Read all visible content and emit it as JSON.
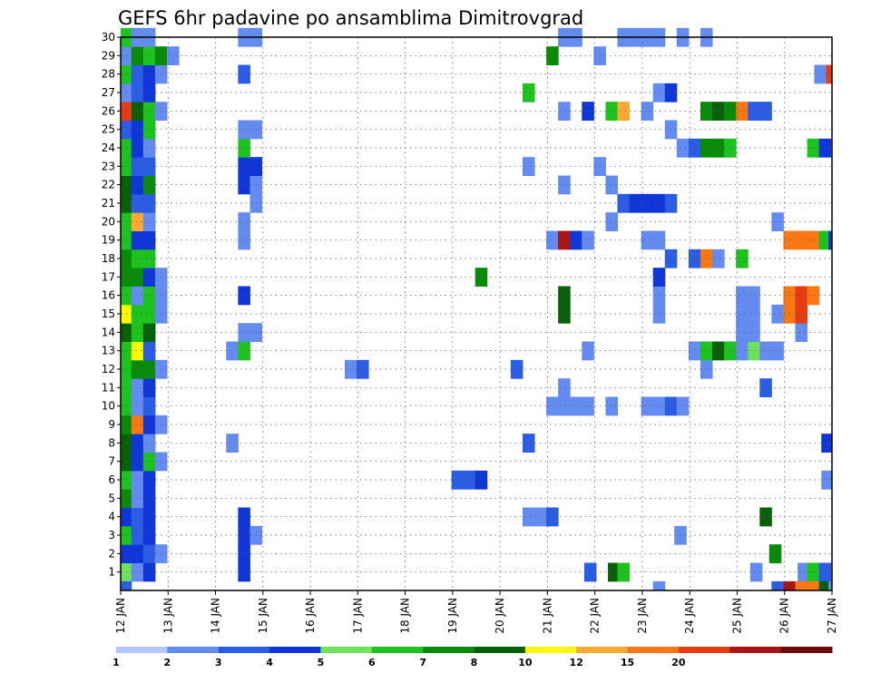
{
  "chart_data": {
    "type": "heatmap",
    "title": "GEFS 6hr padavine po ansamblima Dimitrovgrad",
    "xlabel": "",
    "ylabel": "",
    "x_ticks": [
      "12 JAN",
      "13 JAN",
      "14 JAN",
      "15 JAN",
      "16 JAN",
      "17 JAN",
      "18 JAN",
      "19 JAN",
      "20 JAN",
      "21 JAN",
      "22 JAN",
      "23 JAN",
      "24 JAN",
      "25 JAN",
      "26 JAN",
      "27 JAN"
    ],
    "y_ticks": [
      "1",
      "2",
      "3",
      "4",
      "5",
      "6",
      "7",
      "8",
      "9",
      "10",
      "11",
      "12",
      "13",
      "14",
      "15",
      "16",
      "17",
      "18",
      "19",
      "20",
      "21",
      "22",
      "23",
      "24",
      "25",
      "26",
      "27",
      "28",
      "29",
      "30"
    ],
    "xlim": [
      0,
      15
    ],
    "ylim": [
      0,
      30
    ],
    "grid": true,
    "legend": "bottom colorbar",
    "colorbar": {
      "labels": [
        "1",
        "2",
        "3",
        "4",
        "5",
        "6",
        "7",
        "8",
        "10",
        "12",
        "15",
        "20"
      ],
      "colors": [
        "#b4c6fa",
        "#648cf0",
        "#2a5ce4",
        "#1036d8",
        "#6ee25a",
        "#1ec21e",
        "#0a8a0a",
        "#086008",
        "#fafa00",
        "#faaa32",
        "#fa7814",
        "#e63c14",
        "#aa1414",
        "#6e0a0a"
      ]
    },
    "cells": [
      [
        0.1,
        1,
        4
      ],
      [
        0.35,
        1,
        1
      ],
      [
        0.6,
        1,
        3
      ],
      [
        2.6,
        1,
        3
      ],
      [
        9.9,
        1,
        2
      ],
      [
        10.4,
        1,
        7
      ],
      [
        10.6,
        1,
        5
      ],
      [
        13.4,
        1,
        1
      ],
      [
        14.4,
        1,
        1
      ],
      [
        14.6,
        1,
        5
      ],
      [
        14.85,
        1,
        2
      ],
      [
        0.1,
        2,
        3
      ],
      [
        0.35,
        2,
        3
      ],
      [
        0.6,
        2,
        2
      ],
      [
        0.85,
        2,
        1
      ],
      [
        2.6,
        2,
        3
      ],
      [
        13.8,
        2,
        6
      ],
      [
        0.1,
        3,
        5
      ],
      [
        0.35,
        3,
        2
      ],
      [
        0.6,
        3,
        3
      ],
      [
        2.6,
        3,
        3
      ],
      [
        2.85,
        3,
        1
      ],
      [
        11.8,
        3,
        1
      ],
      [
        0.1,
        4,
        3
      ],
      [
        0.35,
        4,
        2
      ],
      [
        0.6,
        4,
        3
      ],
      [
        2.6,
        4,
        3
      ],
      [
        8.6,
        4,
        1
      ],
      [
        8.85,
        4,
        1
      ],
      [
        9.1,
        4,
        2
      ],
      [
        13.6,
        4,
        7
      ],
      [
        0.1,
        5,
        6
      ],
      [
        0.35,
        5,
        1
      ],
      [
        0.6,
        5,
        3
      ],
      [
        0.1,
        6,
        5
      ],
      [
        0.35,
        6,
        1
      ],
      [
        0.6,
        6,
        3
      ],
      [
        7.1,
        6,
        2
      ],
      [
        7.35,
        6,
        2
      ],
      [
        7.6,
        6,
        3
      ],
      [
        14.9,
        6,
        1
      ],
      [
        0.1,
        7,
        7
      ],
      [
        0.35,
        7,
        3
      ],
      [
        0.6,
        7,
        5
      ],
      [
        0.85,
        7,
        1
      ],
      [
        0.1,
        8,
        7
      ],
      [
        0.35,
        8,
        3
      ],
      [
        0.6,
        8,
        1
      ],
      [
        2.35,
        8,
        1
      ],
      [
        8.6,
        8,
        2
      ],
      [
        14.9,
        8,
        3
      ],
      [
        0.1,
        9,
        6
      ],
      [
        0.35,
        9,
        10
      ],
      [
        0.6,
        9,
        3
      ],
      [
        0.85,
        9,
        1
      ],
      [
        0.1,
        10,
        5
      ],
      [
        0.35,
        10,
        1
      ],
      [
        0.6,
        10,
        2
      ],
      [
        9.1,
        10,
        1
      ],
      [
        9.35,
        10,
        1
      ],
      [
        9.6,
        10,
        1
      ],
      [
        9.85,
        10,
        1
      ],
      [
        10.35,
        10,
        1
      ],
      [
        11.1,
        10,
        1
      ],
      [
        11.35,
        10,
        1
      ],
      [
        11.6,
        10,
        2
      ],
      [
        11.85,
        10,
        1
      ],
      [
        0.1,
        11,
        5
      ],
      [
        0.35,
        11,
        1
      ],
      [
        0.6,
        11,
        3
      ],
      [
        9.35,
        11,
        1
      ],
      [
        13.6,
        11,
        2
      ],
      [
        0.1,
        12,
        5
      ],
      [
        0.35,
        12,
        6
      ],
      [
        0.6,
        12,
        6
      ],
      [
        0.85,
        12,
        1
      ],
      [
        4.85,
        12,
        1
      ],
      [
        5.1,
        12,
        2
      ],
      [
        8.35,
        12,
        2
      ],
      [
        12.35,
        12,
        1
      ],
      [
        0.1,
        13,
        5
      ],
      [
        0.35,
        13,
        8
      ],
      [
        0.6,
        13,
        2
      ],
      [
        2.35,
        13,
        1
      ],
      [
        2.6,
        13,
        5
      ],
      [
        9.85,
        13,
        1
      ],
      [
        12.1,
        13,
        1
      ],
      [
        12.35,
        13,
        5
      ],
      [
        12.6,
        13,
        7
      ],
      [
        12.85,
        13,
        5
      ],
      [
        13.1,
        13,
        1
      ],
      [
        13.35,
        13,
        4
      ],
      [
        13.6,
        13,
        1
      ],
      [
        13.85,
        13,
        1
      ],
      [
        0.1,
        14,
        7
      ],
      [
        0.35,
        14,
        5
      ],
      [
        0.6,
        14,
        7
      ],
      [
        2.6,
        14,
        1
      ],
      [
        2.85,
        14,
        1
      ],
      [
        13.1,
        14,
        1
      ],
      [
        13.35,
        14,
        1
      ],
      [
        14.35,
        14,
        1
      ],
      [
        0.1,
        15,
        8
      ],
      [
        0.35,
        15,
        5
      ],
      [
        0.6,
        15,
        5
      ],
      [
        0.85,
        15,
        1
      ],
      [
        9.35,
        15,
        7
      ],
      [
        11.35,
        15,
        1
      ],
      [
        13.1,
        15,
        1
      ],
      [
        13.35,
        15,
        1
      ],
      [
        13.85,
        15,
        1
      ],
      [
        14.1,
        15,
        10
      ],
      [
        14.35,
        15,
        11
      ],
      [
        0.1,
        16,
        5
      ],
      [
        0.35,
        16,
        1
      ],
      [
        0.6,
        16,
        5
      ],
      [
        0.85,
        16,
        1
      ],
      [
        2.6,
        16,
        3
      ],
      [
        9.35,
        16,
        7
      ],
      [
        11.35,
        16,
        1
      ],
      [
        13.1,
        16,
        1
      ],
      [
        13.35,
        16,
        1
      ],
      [
        14.1,
        16,
        10
      ],
      [
        14.35,
        16,
        11
      ],
      [
        14.6,
        16,
        10
      ],
      [
        0.1,
        17,
        6
      ],
      [
        0.35,
        17,
        6
      ],
      [
        0.6,
        17,
        3
      ],
      [
        0.85,
        17,
        1
      ],
      [
        7.6,
        17,
        6
      ],
      [
        11.35,
        17,
        3
      ],
      [
        0.1,
        18,
        6
      ],
      [
        0.35,
        18,
        5
      ],
      [
        0.6,
        18,
        5
      ],
      [
        11.6,
        18,
        2
      ],
      [
        12.1,
        18,
        2
      ],
      [
        12.35,
        18,
        10
      ],
      [
        12.6,
        18,
        1
      ],
      [
        13.1,
        18,
        5
      ],
      [
        0.1,
        19,
        5
      ],
      [
        0.35,
        19,
        3
      ],
      [
        0.6,
        19,
        3
      ],
      [
        2.6,
        19,
        1
      ],
      [
        9.1,
        19,
        1
      ],
      [
        9.35,
        19,
        12
      ],
      [
        9.6,
        19,
        3
      ],
      [
        9.85,
        19,
        1
      ],
      [
        11.1,
        19,
        1
      ],
      [
        11.35,
        19,
        1
      ],
      [
        14.1,
        19,
        10
      ],
      [
        14.35,
        19,
        10
      ],
      [
        14.6,
        19,
        10
      ],
      [
        14.85,
        19,
        5
      ],
      [
        15.05,
        19,
        3
      ],
      [
        0.1,
        20,
        5
      ],
      [
        0.35,
        20,
        9
      ],
      [
        0.6,
        20,
        1
      ],
      [
        2.6,
        20,
        1
      ],
      [
        10.35,
        20,
        1
      ],
      [
        13.85,
        20,
        1
      ],
      [
        0.1,
        21,
        7
      ],
      [
        0.35,
        21,
        2
      ],
      [
        0.6,
        21,
        2
      ],
      [
        2.85,
        21,
        1
      ],
      [
        10.6,
        21,
        2
      ],
      [
        10.85,
        21,
        3
      ],
      [
        11.1,
        21,
        3
      ],
      [
        11.35,
        21,
        3
      ],
      [
        11.6,
        21,
        2
      ],
      [
        0.1,
        22,
        7
      ],
      [
        0.35,
        22,
        3
      ],
      [
        0.6,
        22,
        6
      ],
      [
        2.6,
        22,
        3
      ],
      [
        2.85,
        22,
        1
      ],
      [
        9.35,
        22,
        1
      ],
      [
        10.35,
        22,
        1
      ],
      [
        0.1,
        23,
        5
      ],
      [
        0.35,
        23,
        2
      ],
      [
        0.6,
        23,
        2
      ],
      [
        2.6,
        23,
        3
      ],
      [
        2.85,
        23,
        3
      ],
      [
        8.6,
        23,
        1
      ],
      [
        10.1,
        23,
        1
      ],
      [
        0.1,
        24,
        5
      ],
      [
        0.35,
        24,
        3
      ],
      [
        0.6,
        24,
        1
      ],
      [
        2.6,
        24,
        5
      ],
      [
        11.85,
        24,
        1
      ],
      [
        12.1,
        24,
        2
      ],
      [
        12.35,
        24,
        6
      ],
      [
        12.6,
        24,
        6
      ],
      [
        12.85,
        24,
        5
      ],
      [
        14.6,
        24,
        5
      ],
      [
        14.85,
        24,
        3
      ],
      [
        0.1,
        25,
        2
      ],
      [
        0.35,
        25,
        3
      ],
      [
        0.6,
        25,
        5
      ],
      [
        2.6,
        25,
        1
      ],
      [
        2.85,
        25,
        1
      ],
      [
        11.6,
        25,
        1
      ],
      [
        0.1,
        26,
        11
      ],
      [
        0.35,
        26,
        7
      ],
      [
        0.6,
        26,
        5
      ],
      [
        0.85,
        26,
        1
      ],
      [
        9.35,
        26,
        1
      ],
      [
        9.85,
        26,
        3
      ],
      [
        10.35,
        26,
        5
      ],
      [
        10.6,
        26,
        9
      ],
      [
        11.1,
        26,
        1
      ],
      [
        12.35,
        26,
        6
      ],
      [
        12.6,
        26,
        7
      ],
      [
        12.85,
        26,
        6
      ],
      [
        13.1,
        26,
        10
      ],
      [
        13.35,
        26,
        2
      ],
      [
        13.6,
        26,
        2
      ],
      [
        0.1,
        27,
        1
      ],
      [
        0.35,
        27,
        2
      ],
      [
        0.6,
        27,
        3
      ],
      [
        8.6,
        27,
        5
      ],
      [
        11.35,
        27,
        1
      ],
      [
        11.6,
        27,
        3
      ],
      [
        0.1,
        28,
        5
      ],
      [
        0.35,
        28,
        2
      ],
      [
        0.6,
        28,
        3
      ],
      [
        0.85,
        28,
        1
      ],
      [
        2.6,
        28,
        2
      ],
      [
        14.75,
        28,
        1
      ],
      [
        15.0,
        28,
        11
      ],
      [
        0.1,
        29,
        1
      ],
      [
        0.35,
        29,
        6
      ],
      [
        0.6,
        29,
        5
      ],
      [
        0.85,
        29,
        6
      ],
      [
        1.1,
        29,
        1
      ],
      [
        9.1,
        29,
        6
      ],
      [
        10.1,
        29,
        1
      ],
      [
        0.1,
        30,
        5
      ],
      [
        0.35,
        30,
        1
      ],
      [
        0.6,
        30,
        1
      ],
      [
        2.6,
        30,
        1
      ],
      [
        2.85,
        30,
        1
      ],
      [
        9.35,
        30,
        1
      ],
      [
        9.6,
        30,
        1
      ],
      [
        10.6,
        30,
        1
      ],
      [
        10.85,
        30,
        1
      ],
      [
        11.1,
        30,
        1
      ],
      [
        11.35,
        30,
        1
      ],
      [
        11.85,
        30,
        1
      ],
      [
        12.35,
        30,
        1
      ],
      [
        0.1,
        0,
        2
      ],
      [
        11.35,
        0,
        1
      ],
      [
        13.85,
        0,
        2
      ],
      [
        14.1,
        0,
        12
      ],
      [
        14.35,
        0,
        10
      ],
      [
        14.6,
        0,
        10
      ],
      [
        14.85,
        0,
        7
      ],
      [
        15.05,
        0,
        1
      ]
    ]
  }
}
